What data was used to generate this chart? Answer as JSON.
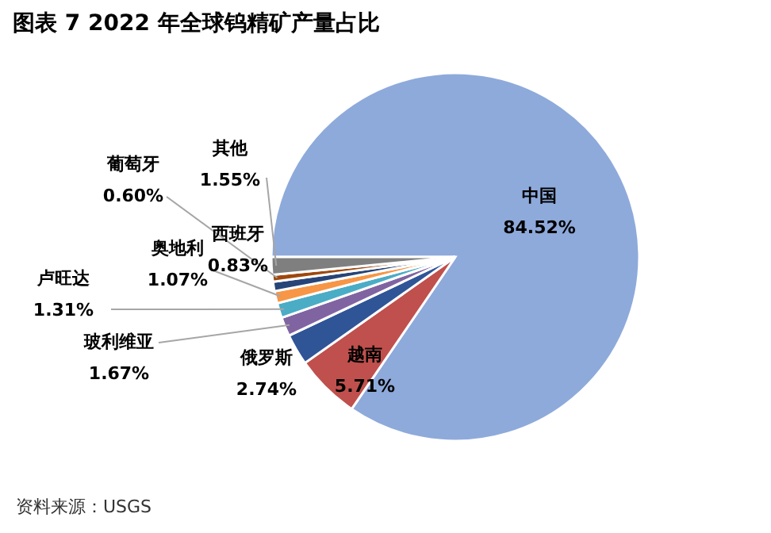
{
  "chart_data": {
    "type": "pie",
    "title": "图表 7 2022 年全球钨精矿产量占比",
    "categories": [
      "中国",
      "越南",
      "俄罗斯",
      "玻利维亚",
      "卢旺达",
      "奥地利",
      "西班牙",
      "葡萄牙",
      "其他"
    ],
    "values": [
      84.52,
      5.71,
      2.74,
      1.67,
      1.31,
      1.07,
      0.83,
      0.6,
      1.55
    ],
    "value_labels": [
      "84.52%",
      "5.71%",
      "2.74%",
      "1.67%",
      "1.31%",
      "1.07%",
      "0.83%",
      "0.60%",
      "1.55%"
    ],
    "colors": [
      "#8eaadb",
      "#c0504d",
      "#2f5597",
      "#8064a2",
      "#4bacc6",
      "#f79646",
      "#264478",
      "#9e480e",
      "#7f7f7f"
    ],
    "annotations": [
      "资料来源：USGS"
    ]
  }
}
